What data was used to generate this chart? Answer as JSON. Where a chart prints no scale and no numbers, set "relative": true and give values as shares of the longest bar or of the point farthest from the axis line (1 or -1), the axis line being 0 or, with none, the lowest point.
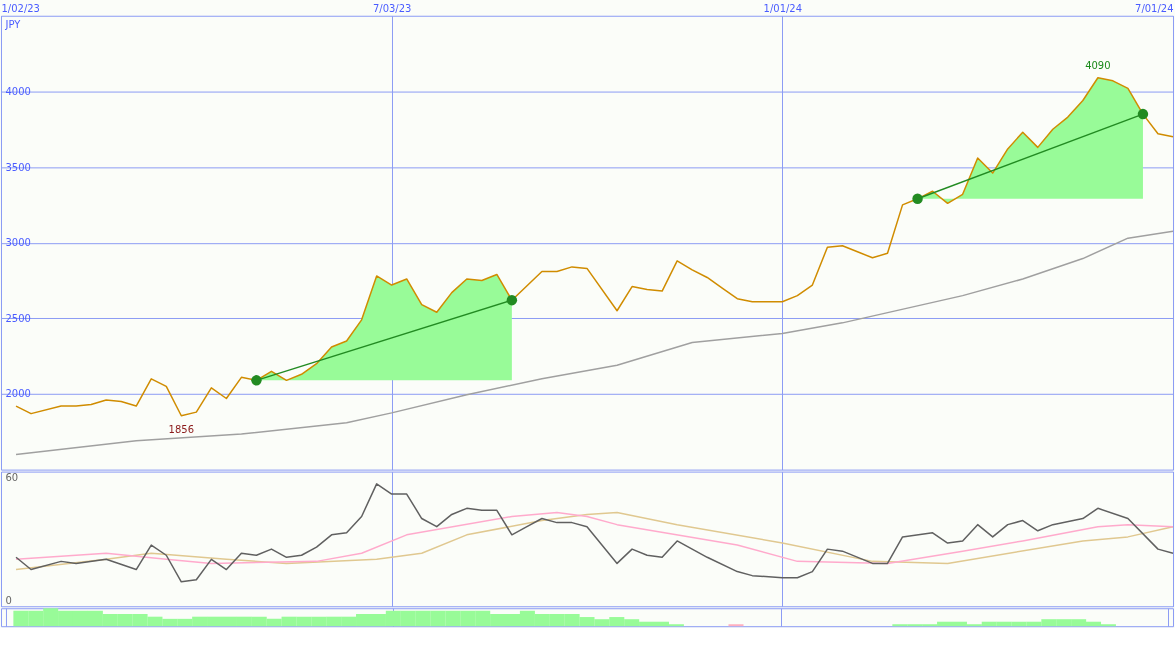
{
  "chart_data": [
    {
      "type": "line",
      "ylabel": "JPY",
      "xlim": [
        "2023-01-02",
        "2024-07-01"
      ],
      "xticks": [
        {
          "value": "2023-01-02",
          "label": "1/02/23"
        },
        {
          "value": "2023-07-03",
          "label": "7/03/23"
        },
        {
          "value": "2024-01-01",
          "label": "1/01/24"
        },
        {
          "value": "2024-07-01",
          "label": "7/01/24"
        }
      ],
      "ylim": [
        1500,
        4500
      ],
      "yticks": [
        2000,
        2500,
        3000,
        3500,
        4000
      ],
      "grid": true,
      "series": [
        {
          "color": "#a0a0a0",
          "x": [
            "2023-01-09",
            "2023-03-06",
            "2023-04-24",
            "2023-06-12",
            "2023-07-03",
            "2023-08-07",
            "2023-09-11",
            "2023-10-16",
            "2023-11-20",
            "2024-01-01",
            "2024-01-29",
            "2024-03-25",
            "2024-04-22",
            "2024-05-20",
            "2024-06-10",
            "2024-07-01"
          ],
          "values": [
            1600,
            1690,
            1735,
            1810,
            1875,
            1995,
            2100,
            2190,
            2340,
            2400,
            2470,
            2650,
            2760,
            2895,
            3030,
            3075
          ]
        },
        {
          "color": "#d08c00",
          "x": [
            "2023-01-09",
            "2023-01-16",
            "2023-01-30",
            "2023-02-06",
            "2023-02-13",
            "2023-02-20",
            "2023-02-27",
            "2023-03-06",
            "2023-03-13",
            "2023-03-20",
            "2023-03-27",
            "2023-04-03",
            "2023-04-10",
            "2023-04-17",
            "2023-04-24",
            "2023-05-01",
            "2023-05-08",
            "2023-05-15",
            "2023-05-22",
            "2023-05-29",
            "2023-06-05",
            "2023-06-12",
            "2023-06-19",
            "2023-06-26",
            "2023-07-03",
            "2023-07-10",
            "2023-07-17",
            "2023-07-24",
            "2023-07-31",
            "2023-08-07",
            "2023-08-14",
            "2023-08-21",
            "2023-08-28",
            "2023-09-11",
            "2023-09-18",
            "2023-09-25",
            "2023-10-02",
            "2023-10-16",
            "2023-10-23",
            "2023-10-30",
            "2023-11-06",
            "2023-11-13",
            "2023-11-20",
            "2023-11-27",
            "2023-12-04",
            "2023-12-11",
            "2023-12-18",
            "2024-01-01",
            "2024-01-08",
            "2024-01-15",
            "2024-01-22",
            "2024-01-29",
            "2024-02-05",
            "2024-02-12",
            "2024-02-19",
            "2024-02-26",
            "2024-03-04",
            "2024-03-11",
            "2024-03-18",
            "2024-03-25",
            "2024-04-01",
            "2024-04-08",
            "2024-04-15",
            "2024-04-22",
            "2024-04-29",
            "2024-05-06",
            "2024-05-13",
            "2024-05-20",
            "2024-05-27",
            "2024-06-03",
            "2024-06-10",
            "2024-06-17",
            "2024-06-24",
            "2024-07-01"
          ],
          "values": [
            1920,
            1870,
            1920,
            1920,
            1930,
            1960,
            1950,
            1920,
            2100,
            2050,
            1856,
            1880,
            2040,
            1970,
            2110,
            2090,
            2150,
            2090,
            2130,
            2200,
            2310,
            2350,
            2490,
            2780,
            2720,
            2760,
            2590,
            2540,
            2670,
            2760,
            2750,
            2790,
            2620,
            2810,
            2810,
            2840,
            2830,
            2550,
            2710,
            2690,
            2680,
            2880,
            2820,
            2770,
            2700,
            2630,
            2610,
            2610,
            2650,
            2720,
            2970,
            2980,
            2940,
            2900,
            2930,
            3250,
            3290,
            3340,
            3260,
            3320,
            3560,
            3460,
            3620,
            3730,
            3630,
            3750,
            3830,
            3940,
            4090,
            4070,
            4020,
            3850,
            3720,
            3700
          ],
          "lower": [
            null,
            null,
            null,
            null,
            null,
            null,
            null,
            null,
            null,
            null,
            null,
            null,
            null,
            null,
            null,
            2090,
            2090,
            2090,
            2090,
            2090,
            2090,
            2090,
            2090,
            2090,
            2090,
            2090,
            2090,
            2090,
            2090,
            2090,
            2090,
            2090,
            2090,
            null,
            null,
            null,
            null,
            null,
            null,
            null,
            null,
            null,
            null,
            null,
            null,
            null,
            null,
            null,
            null,
            null,
            null,
            null,
            null,
            null,
            null,
            null,
            3290,
            3290,
            3290,
            3290,
            3290,
            3290,
            3290,
            3290,
            3290,
            3290,
            3290,
            3290,
            3290,
            3290,
            3290,
            3290,
            null,
            null
          ],
          "upper": [
            null,
            null,
            null,
            null,
            null,
            null,
            null,
            null,
            null,
            null,
            null,
            null,
            null,
            null,
            null,
            2090,
            2150,
            2090,
            2130,
            2200,
            2310,
            2350,
            2490,
            2780,
            2720,
            2760,
            2590,
            2540,
            2670,
            2760,
            2750,
            2790,
            2620,
            null,
            null,
            null,
            null,
            null,
            null,
            null,
            null,
            null,
            null,
            null,
            null,
            null,
            null,
            null,
            null,
            null,
            null,
            null,
            null,
            null,
            null,
            null,
            3290,
            3340,
            3260,
            3320,
            3560,
            3460,
            3620,
            3730,
            3630,
            3750,
            3830,
            3940,
            4090,
            4070,
            4020,
            3850,
            null,
            null
          ]
        },
        {
          "color": "#228b22",
          "marker": "circle",
          "x": [
            "2023-05-01",
            "2023-08-28"
          ],
          "values": [
            2090,
            2620
          ]
        },
        {
          "color": "#228b22",
          "marker": "circle",
          "x": [
            "2024-03-04",
            "2024-06-17"
          ],
          "values": [
            3290,
            3850
          ]
        }
      ],
      "annotations": [
        {
          "text": "4090",
          "x": "2024-05-27",
          "y": 4090
        },
        {
          "text": "1856",
          "x": "2023-03-27",
          "y": 1856
        }
      ]
    },
    {
      "type": "line",
      "xlim": [
        "2023-01-02",
        "2024-07-01"
      ],
      "ylim": [
        -3,
        63
      ],
      "yticks": [
        0,
        60
      ],
      "grid": "x",
      "tick_labels": "y",
      "xticks": [
        {
          "value": "2023-01-02",
          "label": null
        },
        {
          "value": "2023-07-03",
          "label": null
        },
        {
          "value": "2024-01-01",
          "label": null
        },
        {
          "value": "2024-07-01",
          "label": null
        }
      ],
      "series": [
        {
          "color": "#e0c890",
          "x": [
            "2023-01-09",
            "2023-02-20",
            "2023-03-13",
            "2023-04-17",
            "2023-05-15",
            "2023-06-26",
            "2023-07-17",
            "2023-08-07",
            "2023-09-11",
            "2023-10-02",
            "2023-10-16",
            "2023-11-13",
            "2024-01-01",
            "2024-02-12",
            "2024-03-18",
            "2024-05-20",
            "2024-06-10",
            "2024-07-01"
          ],
          "values": [
            15,
            20,
            23,
            20,
            18,
            20,
            23,
            32,
            39,
            42,
            43,
            37,
            28,
            19,
            18,
            29,
            31,
            36
          ]
        },
        {
          "color": "#ffaacc",
          "x": [
            "2023-01-09",
            "2023-02-20",
            "2023-03-20",
            "2023-04-10",
            "2023-05-29",
            "2023-06-19",
            "2023-07-10",
            "2023-08-28",
            "2023-09-18",
            "2023-10-02",
            "2023-10-16",
            "2023-12-11",
            "2024-01-08",
            "2024-02-19",
            "2024-03-25",
            "2024-04-22",
            "2024-05-27",
            "2024-06-10",
            "2024-07-01"
          ],
          "values": [
            20,
            23,
            20,
            18,
            19,
            23,
            32,
            41,
            43,
            41,
            37,
            27,
            19,
            18,
            24,
            29,
            36,
            37,
            36
          ]
        },
        {
          "color": "#606060",
          "x": [
            "2023-01-09",
            "2023-01-16",
            "2023-01-30",
            "2023-02-06",
            "2023-02-20",
            "2023-03-06",
            "2023-03-13",
            "2023-03-20",
            "2023-03-27",
            "2023-04-03",
            "2023-04-10",
            "2023-04-17",
            "2023-04-24",
            "2023-05-01",
            "2023-05-08",
            "2023-05-15",
            "2023-05-22",
            "2023-05-29",
            "2023-06-05",
            "2023-06-12",
            "2023-06-19",
            "2023-06-26",
            "2023-07-03",
            "2023-07-10",
            "2023-07-17",
            "2023-07-24",
            "2023-07-31",
            "2023-08-07",
            "2023-08-14",
            "2023-08-21",
            "2023-08-28",
            "2023-09-04",
            "2023-09-11",
            "2023-09-18",
            "2023-09-25",
            "2023-10-02",
            "2023-10-16",
            "2023-10-23",
            "2023-10-30",
            "2023-11-06",
            "2023-11-13",
            "2023-11-20",
            "2023-11-27",
            "2023-12-11",
            "2023-12-18",
            "2024-01-01",
            "2024-01-08",
            "2024-01-15",
            "2024-01-22",
            "2024-01-29",
            "2024-02-12",
            "2024-02-19",
            "2024-02-26",
            "2024-03-11",
            "2024-03-18",
            "2024-03-25",
            "2024-04-01",
            "2024-04-08",
            "2024-04-15",
            "2024-04-22",
            "2024-04-29",
            "2024-05-06",
            "2024-05-20",
            "2024-05-27",
            "2024-06-10",
            "2024-06-24",
            "2024-07-01"
          ],
          "values": [
            21,
            15,
            19,
            18,
            20,
            15,
            27,
            22,
            9,
            10,
            20,
            15,
            23,
            22,
            25,
            21,
            22,
            26,
            32,
            33,
            41,
            57,
            52,
            52,
            40,
            36,
            42,
            45,
            44,
            44,
            32,
            36,
            40,
            38,
            38,
            36,
            18,
            25,
            22,
            21,
            29,
            25,
            21,
            14,
            12,
            11,
            11,
            14,
            25,
            24,
            18,
            18,
            31,
            33,
            28,
            29,
            37,
            31,
            37,
            39,
            34,
            37,
            40,
            45,
            40,
            25,
            23
          ]
        }
      ]
    },
    {
      "type": "bar",
      "relative": true,
      "xlim": [
        "2023-01-02",
        "2024-07-01"
      ],
      "grid": "x",
      "tick_labels": false,
      "xticks": [
        {
          "value": "2023-01-02",
          "label": null
        },
        {
          "value": "2023-07-03",
          "label": null
        },
        {
          "value": "2024-01-01",
          "label": null
        },
        {
          "value": "2024-07-01",
          "label": null
        }
      ],
      "x": [
        "2023-01-09",
        "2023-01-16",
        "2023-01-23",
        "2023-01-30",
        "2023-02-06",
        "2023-02-13",
        "2023-02-20",
        "2023-02-27",
        "2023-03-06",
        "2023-03-13",
        "2023-03-20",
        "2023-03-27",
        "2023-04-03",
        "2023-04-10",
        "2023-04-17",
        "2023-04-24",
        "2023-05-01",
        "2023-05-08",
        "2023-05-15",
        "2023-05-22",
        "2023-05-29",
        "2023-06-05",
        "2023-06-12",
        "2023-06-19",
        "2023-06-26",
        "2023-07-03",
        "2023-07-10",
        "2023-07-17",
        "2023-07-24",
        "2023-07-31",
        "2023-08-07",
        "2023-08-14",
        "2023-08-21",
        "2023-08-28",
        "2023-09-04",
        "2023-09-11",
        "2023-09-18",
        "2023-09-25",
        "2023-10-02",
        "2023-10-09",
        "2023-10-16",
        "2023-10-23",
        "2023-10-30",
        "2023-11-06",
        "2023-11-13",
        "2023-11-20",
        "2023-11-27",
        "2023-12-04",
        "2023-12-11",
        "2023-12-18",
        "2023-12-25",
        "2024-01-01",
        "2024-01-08",
        "2024-01-15",
        "2024-01-22",
        "2024-01-29",
        "2024-02-05",
        "2024-02-12",
        "2024-02-19",
        "2024-02-26",
        "2024-03-04",
        "2024-03-11",
        "2024-03-18",
        "2024-03-25",
        "2024-04-01",
        "2024-04-08",
        "2024-04-15",
        "2024-04-22",
        "2024-04-29",
        "2024-05-06",
        "2024-05-13",
        "2024-05-20",
        "2024-05-27",
        "2024-06-03"
      ],
      "series": [
        {
          "color": "#98fb98",
          "values": [
            0.86,
            0.86,
            1,
            0.86,
            0.86,
            0.86,
            0.68,
            0.68,
            0.68,
            0.53,
            0.41,
            0.41,
            0.53,
            0.53,
            0.53,
            0.53,
            0.53,
            0.41,
            0.53,
            0.53,
            0.53,
            0.53,
            0.53,
            0.68,
            0.68,
            0.86,
            0.86,
            0.86,
            0.86,
            0.86,
            0.86,
            0.86,
            0.68,
            0.68,
            0.86,
            0.68,
            0.68,
            0.68,
            0.51,
            0.39,
            0.51,
            0.39,
            0.25,
            0.25,
            0.11,
            null,
            null,
            null,
            null,
            null,
            null,
            null,
            null,
            null,
            null,
            null,
            null,
            null,
            null,
            0.11,
            0.11,
            0.11,
            0.25,
            0.25,
            0.11,
            0.25,
            0.25,
            0.25,
            0.25,
            0.39,
            0.39,
            0.39,
            0.25,
            0.11
          ]
        },
        {
          "color": "#ffb0c0",
          "x": [
            "2023-12-11"
          ],
          "values": [
            0.11
          ]
        }
      ]
    }
  ]
}
